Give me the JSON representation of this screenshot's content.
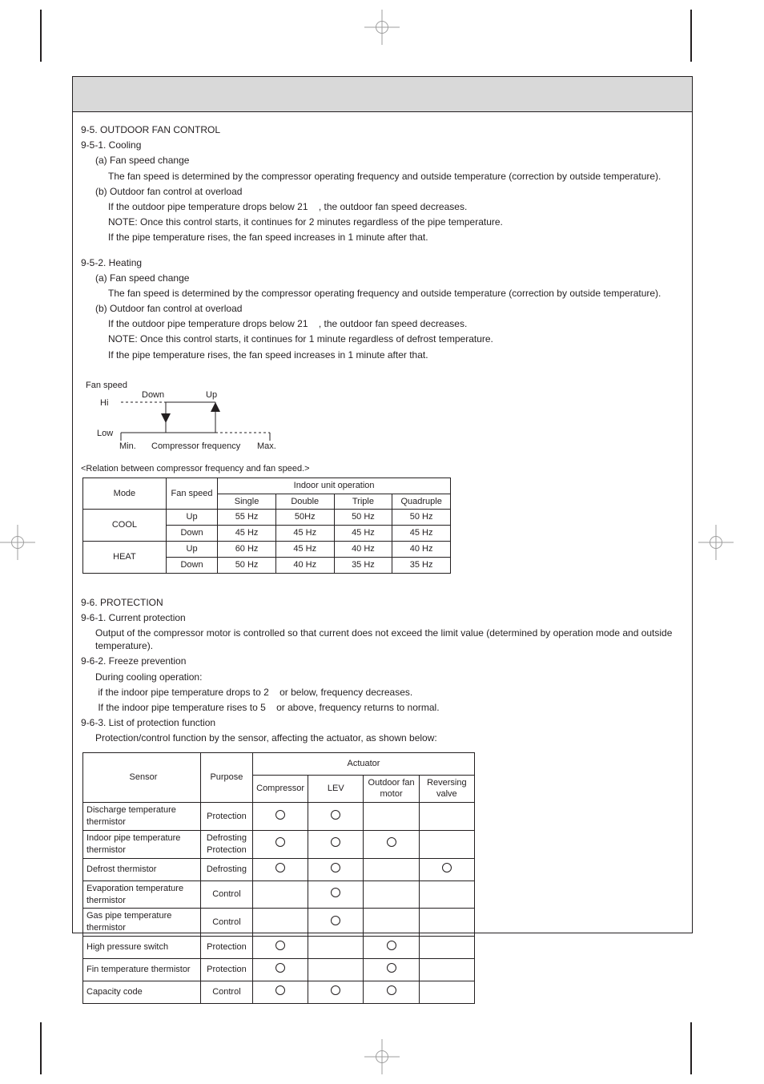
{
  "colors": {
    "text": "#231f20",
    "titlebar_bg": "#d9d9d9",
    "page_bg": "#ffffff",
    "reg": "#9e9e9e"
  },
  "section9_5": {
    "heading": "9-5. OUTDOOR FAN CONTROL",
    "sub1": "9-5-1. Cooling",
    "sub1_a": " (a) Fan speed change",
    "sub1_a_text": "The fan speed is determined by the compressor operating frequency and outside temperature (correction by outside temperature).",
    "sub1_b": " (b) Outdoor fan control at overload",
    "sub1_b_text1": "If the outdoor pipe temperature drops below 21    , the outdoor fan speed decreases.",
    "sub1_b_note": "NOTE: Once this control starts, it continues for 2 minutes regardless of the pipe temperature.",
    "sub1_b_text2": "If the pipe temperature rises, the fan speed increases in 1 minute after that.",
    "sub2": "9-5-2. Heating",
    "sub2_a": " (a) Fan speed change",
    "sub2_a_text": "The fan speed is determined by the compressor operating frequency and outside temperature (correction by outside temperature).",
    "sub2_b": " (b) Outdoor fan control at overload",
    "sub2_b_text1": "If the outdoor pipe temperature drops below 21    , the outdoor fan speed decreases.",
    "sub2_b_note": "NOTE: Once this control starts, it continues for 1 minute regardless of defrost temperature.",
    "sub2_b_text2": "If the pipe temperature rises, the fan speed increases in 1 minute after that."
  },
  "fan_diagram": {
    "y_label": "Fan speed",
    "hi": "Hi",
    "low": "Low",
    "down": "Down",
    "up": "Up",
    "min": "Min.",
    "max": "Max.",
    "x_label": "Compressor frequency"
  },
  "table_freq": {
    "caption": "<Relation between compressor frequency and fan speed.>",
    "head": {
      "mode": "Mode",
      "fan_speed": "Fan speed",
      "indoor_op": "Indoor unit operation",
      "single": "Single",
      "double": "Double",
      "triple": "Triple",
      "quadruple": "Quadruple"
    },
    "rows": [
      {
        "mode": "COOL",
        "fs": "Up",
        "v": [
          "55 Hz",
          "50Hz",
          "50 Hz",
          "50 Hz"
        ]
      },
      {
        "mode": "COOL",
        "fs": "Down",
        "v": [
          "45 Hz",
          "45 Hz",
          "45 Hz",
          "45 Hz"
        ]
      },
      {
        "mode": "HEAT",
        "fs": "Up",
        "v": [
          "60 Hz",
          "45 Hz",
          "40 Hz",
          "40 Hz"
        ]
      },
      {
        "mode": "HEAT",
        "fs": "Down",
        "v": [
          "50 Hz",
          "40 Hz",
          "35 Hz",
          "35 Hz"
        ]
      }
    ]
  },
  "section9_6": {
    "heading": "9-6. PROTECTION",
    "sub1": "9-6-1. Current protection",
    "sub1_text": "Output of the compressor motor is controlled so that current does not exceed the limit value (determined by operation mode and outside temperature).",
    "sub2": "9-6-2. Freeze prevention",
    "sub2_l1": "During cooling operation:",
    "sub2_l2": " if the indoor pipe temperature drops to 2    or below, frequency decreases.",
    "sub2_l3": " If the indoor pipe temperature rises to 5    or above, frequency returns to normal.",
    "sub3": "9-6-3. List of protection function",
    "sub3_text": "Protection/control function by the sensor, affecting the actuator, as shown below:"
  },
  "table_sense": {
    "head": {
      "sensor": "Sensor",
      "purpose": "Purpose",
      "actuator": "Actuator",
      "compressor": "Compressor",
      "lev": "LEV",
      "fan": "Outdoor fan motor",
      "valve": "Reversing valve"
    },
    "rows": [
      {
        "sensor": "Discharge temperature thermistor",
        "purpose": "Protection",
        "marks": [
          true,
          true,
          false,
          false
        ]
      },
      {
        "sensor": "Indoor pipe temperature thermistor",
        "purpose": "Defrosting Protection",
        "marks": [
          true,
          true,
          true,
          false
        ]
      },
      {
        "sensor": "Defrost thermistor",
        "purpose": "Defrosting",
        "marks": [
          true,
          true,
          false,
          true
        ]
      },
      {
        "sensor": "Evaporation temperature thermistor",
        "purpose": "Control",
        "marks": [
          false,
          true,
          false,
          false
        ]
      },
      {
        "sensor": "Gas pipe temperature thermistor",
        "purpose": "Control",
        "marks": [
          false,
          true,
          false,
          false
        ]
      },
      {
        "sensor": "High pressure switch",
        "purpose": "Protection",
        "marks": [
          true,
          false,
          true,
          false
        ]
      },
      {
        "sensor": "Fin temperature thermistor",
        "purpose": "Protection",
        "marks": [
          true,
          false,
          true,
          false
        ]
      },
      {
        "sensor": "Capacity code",
        "purpose": "Control",
        "marks": [
          true,
          true,
          true,
          false
        ]
      }
    ]
  }
}
